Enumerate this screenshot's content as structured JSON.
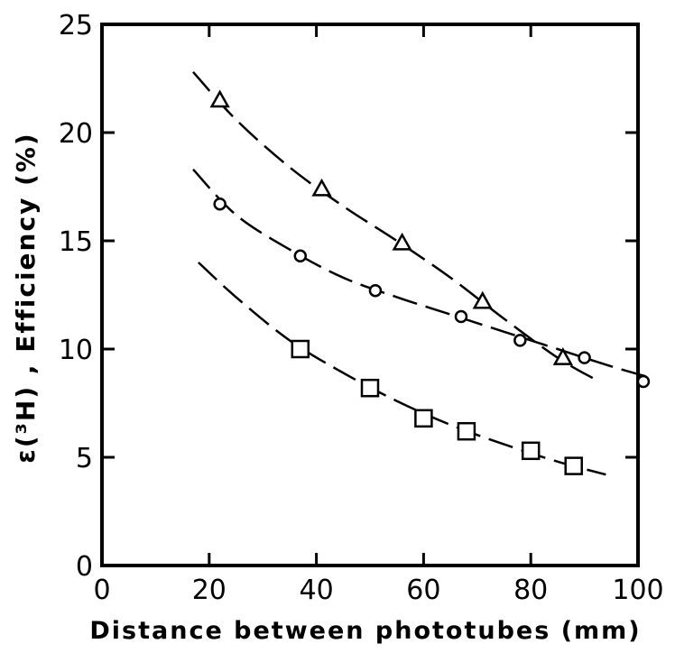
{
  "chart_data": {
    "type": "scatter",
    "xlabel": "Distance between phototubes (mm)",
    "ylabel": "ε(³H) , Efficiency (%)",
    "xlim": [
      0,
      100
    ],
    "ylim": [
      0,
      25
    ],
    "x_ticks": [
      "0",
      "20",
      "40",
      "60",
      "80",
      "100"
    ],
    "y_ticks": [
      "0",
      "5",
      "10",
      "15",
      "20",
      "25"
    ],
    "grid": false,
    "legend": "none",
    "series": [
      {
        "marker": "triangle",
        "points": [
          [
            22,
            21.5
          ],
          [
            41,
            17.4
          ],
          [
            56,
            14.9
          ],
          [
            71,
            12.2
          ],
          [
            86,
            9.6
          ]
        ],
        "fit_curve": [
          [
            17,
            22.8
          ],
          [
            25,
            20.6
          ],
          [
            35,
            18.4
          ],
          [
            45,
            16.6
          ],
          [
            55,
            15.0
          ],
          [
            65,
            13.3
          ],
          [
            75,
            11.4
          ],
          [
            85,
            9.6
          ],
          [
            92,
            8.6
          ]
        ]
      },
      {
        "marker": "circle",
        "points": [
          [
            22,
            16.7
          ],
          [
            37,
            14.3
          ],
          [
            51,
            12.7
          ],
          [
            67,
            11.5
          ],
          [
            78,
            10.4
          ],
          [
            90,
            9.6
          ],
          [
            101,
            8.5
          ]
        ],
        "fit_curve": [
          [
            17,
            18.3
          ],
          [
            25,
            16.2
          ],
          [
            35,
            14.6
          ],
          [
            45,
            13.3
          ],
          [
            55,
            12.4
          ],
          [
            65,
            11.6
          ],
          [
            75,
            10.8
          ],
          [
            85,
            10.0
          ],
          [
            95,
            9.2
          ],
          [
            102,
            8.7
          ]
        ]
      },
      {
        "marker": "square",
        "points": [
          [
            37,
            10.0
          ],
          [
            50,
            8.2
          ],
          [
            60,
            6.8
          ],
          [
            68,
            6.2
          ],
          [
            80,
            5.3
          ],
          [
            88,
            4.6
          ]
        ],
        "fit_curve": [
          [
            18,
            14.0
          ],
          [
            25,
            12.4
          ],
          [
            35,
            10.4
          ],
          [
            45,
            8.9
          ],
          [
            55,
            7.6
          ],
          [
            65,
            6.5
          ],
          [
            75,
            5.6
          ],
          [
            85,
            4.8
          ],
          [
            94,
            4.2
          ]
        ]
      }
    ]
  }
}
